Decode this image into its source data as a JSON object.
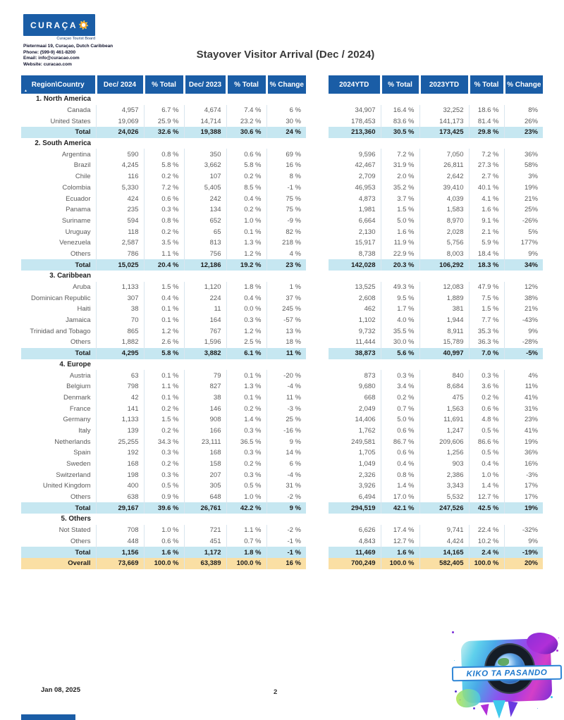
{
  "page": {
    "title": "Stayover Visitor Arrival (Dec / 2024)",
    "footer_date": "Jan 08, 2025",
    "page_number": "2"
  },
  "logo": {
    "brand": "CURAÇA",
    "sun_icon": "sun",
    "tagline": "Curaçao Tourist Board",
    "address_line1": "Pietermaai 19, Curaçao, Dutch Caribbean",
    "address_line2": "Phone: (599-9) 461-8200",
    "address_line3": "Email: info@curacao.com",
    "address_line4": "Website: curacao.com"
  },
  "stamp": {
    "text": "KIKO TA PASANDO"
  },
  "colors": {
    "header_blue": "#1a5da6",
    "total_bg": "#c6e7f1",
    "overall_bg": "#fadfa4"
  },
  "table": {
    "sort_icon": "▲",
    "left_headers": [
      "Region\\Country",
      "Dec/ 2024",
      "% Total",
      "Dec/ 2023",
      "% Total",
      "% Change"
    ],
    "right_headers": [
      "2024YTD",
      "% Total",
      "2023YTD",
      "% Total",
      "% Change"
    ],
    "rows": [
      {
        "type": "group",
        "label": "1. North America"
      },
      {
        "type": "country",
        "label": "Canada",
        "left": [
          "4,957",
          "6.7 %",
          "4,674",
          "7.4 %",
          "6 %"
        ],
        "right": [
          "34,907",
          "16.4 %",
          "32,252",
          "18.6 %",
          "8%"
        ]
      },
      {
        "type": "country",
        "label": "United States",
        "left": [
          "19,069",
          "25.9 %",
          "14,714",
          "23.2 %",
          "30 %"
        ],
        "right": [
          "178,453",
          "83.6 %",
          "141,173",
          "81.4 %",
          "26%"
        ]
      },
      {
        "type": "total",
        "label": "Total",
        "left": [
          "24,026",
          "32.6 %",
          "19,388",
          "30.6 %",
          "24 %"
        ],
        "right": [
          "213,360",
          "30.5 %",
          "173,425",
          "29.8 %",
          "23%"
        ]
      },
      {
        "type": "group",
        "label": "2. South America"
      },
      {
        "type": "country",
        "label": "Argentina",
        "left": [
          "590",
          "0.8 %",
          "350",
          "0.6 %",
          "69 %"
        ],
        "right": [
          "9,596",
          "7.2 %",
          "7,050",
          "7.2 %",
          "36%"
        ]
      },
      {
        "type": "country",
        "label": "Brazil",
        "left": [
          "4,245",
          "5.8 %",
          "3,662",
          "5.8 %",
          "16 %"
        ],
        "right": [
          "42,467",
          "31.9 %",
          "26,811",
          "27.3 %",
          "58%"
        ]
      },
      {
        "type": "country",
        "label": "Chile",
        "left": [
          "116",
          "0.2 %",
          "107",
          "0.2 %",
          "8 %"
        ],
        "right": [
          "2,709",
          "2.0 %",
          "2,642",
          "2.7 %",
          "3%"
        ]
      },
      {
        "type": "country",
        "label": "Colombia",
        "left": [
          "5,330",
          "7.2 %",
          "5,405",
          "8.5 %",
          "-1 %"
        ],
        "right": [
          "46,953",
          "35.2 %",
          "39,410",
          "40.1 %",
          "19%"
        ]
      },
      {
        "type": "country",
        "label": "Ecuador",
        "left": [
          "424",
          "0.6 %",
          "242",
          "0.4 %",
          "75 %"
        ],
        "right": [
          "4,873",
          "3.7 %",
          "4,039",
          "4.1 %",
          "21%"
        ]
      },
      {
        "type": "country",
        "label": "Panama",
        "left": [
          "235",
          "0.3 %",
          "134",
          "0.2 %",
          "75 %"
        ],
        "right": [
          "1,981",
          "1.5 %",
          "1,583",
          "1.6 %",
          "25%"
        ]
      },
      {
        "type": "country",
        "label": "Suriname",
        "left": [
          "594",
          "0.8 %",
          "652",
          "1.0 %",
          "-9 %"
        ],
        "right": [
          "6,664",
          "5.0 %",
          "8,970",
          "9.1 %",
          "-26%"
        ]
      },
      {
        "type": "country",
        "label": "Uruguay",
        "left": [
          "118",
          "0.2 %",
          "65",
          "0.1 %",
          "82 %"
        ],
        "right": [
          "2,130",
          "1.6 %",
          "2,028",
          "2.1 %",
          "5%"
        ]
      },
      {
        "type": "country",
        "label": "Venezuela",
        "left": [
          "2,587",
          "3.5 %",
          "813",
          "1.3 %",
          "218 %"
        ],
        "right": [
          "15,917",
          "11.9 %",
          "5,756",
          "5.9 %",
          "177%"
        ]
      },
      {
        "type": "country",
        "label": "Others",
        "left": [
          "786",
          "1.1 %",
          "756",
          "1.2 %",
          "4 %"
        ],
        "right": [
          "8,738",
          "22.9 %",
          "8,003",
          "18.4 %",
          "9%"
        ]
      },
      {
        "type": "total",
        "label": "Total",
        "left": [
          "15,025",
          "20.4 %",
          "12,186",
          "19.2 %",
          "23 %"
        ],
        "right": [
          "142,028",
          "20.3 %",
          "106,292",
          "18.3 %",
          "34%"
        ]
      },
      {
        "type": "group",
        "label": "3. Caribbean"
      },
      {
        "type": "country",
        "label": "Aruba",
        "left": [
          "1,133",
          "1.5 %",
          "1,120",
          "1.8 %",
          "1 %"
        ],
        "right": [
          "13,525",
          "49.3 %",
          "12,083",
          "47.9 %",
          "12%"
        ]
      },
      {
        "type": "country",
        "label": "Dominican Republic",
        "left": [
          "307",
          "0.4 %",
          "224",
          "0.4 %",
          "37 %"
        ],
        "right": [
          "2,608",
          "9.5 %",
          "1,889",
          "7.5 %",
          "38%"
        ]
      },
      {
        "type": "country",
        "label": "Haiti",
        "left": [
          "38",
          "0.1 %",
          "11",
          "0.0 %",
          "245 %"
        ],
        "right": [
          "462",
          "1.7 %",
          "381",
          "1.5 %",
          "21%"
        ]
      },
      {
        "type": "country",
        "label": "Jamaica",
        "left": [
          "70",
          "0.1 %",
          "164",
          "0.3 %",
          "-57 %"
        ],
        "right": [
          "1,102",
          "4.0 %",
          "1,944",
          "7.7 %",
          "-43%"
        ]
      },
      {
        "type": "country",
        "label": "Trinidad and Tobago",
        "left": [
          "865",
          "1.2 %",
          "767",
          "1.2 %",
          "13 %"
        ],
        "right": [
          "9,732",
          "35.5 %",
          "8,911",
          "35.3 %",
          "9%"
        ]
      },
      {
        "type": "country",
        "label": "Others",
        "left": [
          "1,882",
          "2.6 %",
          "1,596",
          "2.5 %",
          "18 %"
        ],
        "right": [
          "11,444",
          "30.0 %",
          "15,789",
          "36.3 %",
          "-28%"
        ]
      },
      {
        "type": "total",
        "label": "Total",
        "left": [
          "4,295",
          "5.8 %",
          "3,882",
          "6.1 %",
          "11 %"
        ],
        "right": [
          "38,873",
          "5.6 %",
          "40,997",
          "7.0 %",
          "-5%"
        ]
      },
      {
        "type": "group",
        "label": "4. Europe"
      },
      {
        "type": "country",
        "label": "Austria",
        "left": [
          "63",
          "0.1 %",
          "79",
          "0.1 %",
          "-20 %"
        ],
        "right": [
          "873",
          "0.3 %",
          "840",
          "0.3 %",
          "4%"
        ]
      },
      {
        "type": "country",
        "label": "Belgium",
        "left": [
          "798",
          "1.1 %",
          "827",
          "1.3 %",
          "-4 %"
        ],
        "right": [
          "9,680",
          "3.4 %",
          "8,684",
          "3.6 %",
          "11%"
        ]
      },
      {
        "type": "country",
        "label": "Denmark",
        "left": [
          "42",
          "0.1 %",
          "38",
          "0.1 %",
          "11 %"
        ],
        "right": [
          "668",
          "0.2 %",
          "475",
          "0.2 %",
          "41%"
        ]
      },
      {
        "type": "country",
        "label": "France",
        "left": [
          "141",
          "0.2 %",
          "146",
          "0.2 %",
          "-3 %"
        ],
        "right": [
          "2,049",
          "0.7 %",
          "1,563",
          "0.6 %",
          "31%"
        ]
      },
      {
        "type": "country",
        "label": "Germany",
        "left": [
          "1,133",
          "1.5 %",
          "908",
          "1.4 %",
          "25 %"
        ],
        "right": [
          "14,406",
          "5.0 %",
          "11,691",
          "4.8 %",
          "23%"
        ]
      },
      {
        "type": "country",
        "label": "Italy",
        "left": [
          "139",
          "0.2 %",
          "166",
          "0.3 %",
          "-16 %"
        ],
        "right": [
          "1,762",
          "0.6 %",
          "1,247",
          "0.5 %",
          "41%"
        ]
      },
      {
        "type": "country",
        "label": "Netherlands",
        "left": [
          "25,255",
          "34.3 %",
          "23,111",
          "36.5 %",
          "9 %"
        ],
        "right": [
          "249,581",
          "86.7 %",
          "209,606",
          "86.6 %",
          "19%"
        ]
      },
      {
        "type": "country",
        "label": "Spain",
        "left": [
          "192",
          "0.3 %",
          "168",
          "0.3 %",
          "14 %"
        ],
        "right": [
          "1,705",
          "0.6 %",
          "1,256",
          "0.5 %",
          "36%"
        ]
      },
      {
        "type": "country",
        "label": "Sweden",
        "left": [
          "168",
          "0.2 %",
          "158",
          "0.2 %",
          "6 %"
        ],
        "right": [
          "1,049",
          "0.4 %",
          "903",
          "0.4 %",
          "16%"
        ]
      },
      {
        "type": "country",
        "label": "Switzerland",
        "left": [
          "198",
          "0.3 %",
          "207",
          "0.3 %",
          "-4 %"
        ],
        "right": [
          "2,326",
          "0.8 %",
          "2,386",
          "1.0 %",
          "-3%"
        ]
      },
      {
        "type": "country",
        "label": "United Kingdom",
        "left": [
          "400",
          "0.5 %",
          "305",
          "0.5 %",
          "31 %"
        ],
        "right": [
          "3,926",
          "1.4 %",
          "3,343",
          "1.4 %",
          "17%"
        ]
      },
      {
        "type": "country",
        "label": "Others",
        "left": [
          "638",
          "0.9 %",
          "648",
          "1.0 %",
          "-2 %"
        ],
        "right": [
          "6,494",
          "17.0 %",
          "5,532",
          "12.7 %",
          "17%"
        ]
      },
      {
        "type": "total",
        "label": "Total",
        "left": [
          "29,167",
          "39.6 %",
          "26,761",
          "42.2 %",
          "9 %"
        ],
        "right": [
          "294,519",
          "42.1 %",
          "247,526",
          "42.5 %",
          "19%"
        ]
      },
      {
        "type": "group",
        "label": "5. Others"
      },
      {
        "type": "country",
        "label": "Not Stated",
        "left": [
          "708",
          "1.0 %",
          "721",
          "1.1 %",
          "-2 %"
        ],
        "right": [
          "6,626",
          "17.4 %",
          "9,741",
          "22.4 %",
          "-32%"
        ]
      },
      {
        "type": "country",
        "label": "Others",
        "left": [
          "448",
          "0.6 %",
          "451",
          "0.7 %",
          "-1 %"
        ],
        "right": [
          "4,843",
          "12.7 %",
          "4,424",
          "10.2 %",
          "9%"
        ]
      },
      {
        "type": "total",
        "label": "Total",
        "left": [
          "1,156",
          "1.6 %",
          "1,172",
          "1.8 %",
          "-1 %"
        ],
        "right": [
          "11,469",
          "1.6 %",
          "14,165",
          "2.4 %",
          "-19%"
        ]
      },
      {
        "type": "overall",
        "label": "Overall",
        "left": [
          "73,669",
          "100.0 %",
          "63,389",
          "100.0 %",
          "16 %"
        ],
        "right": [
          "700,249",
          "100.0 %",
          "582,405",
          "100.0 %",
          "20%"
        ]
      }
    ]
  }
}
